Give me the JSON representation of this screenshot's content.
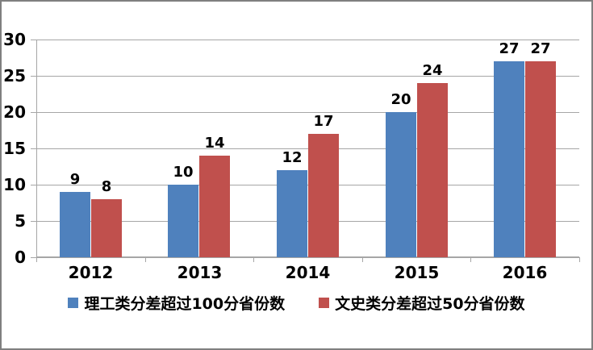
{
  "chart_data": {
    "type": "bar",
    "title": "",
    "xlabel": "",
    "ylabel": "",
    "categories": [
      "2012",
      "2013",
      "2014",
      "2015",
      "2016"
    ],
    "series": [
      {
        "name": "理工类分差超过100分省份数",
        "color": "#4F81BD",
        "values": [
          9,
          10,
          12,
          20,
          27
        ]
      },
      {
        "name": "文史类分差超过50分省份数",
        "color": "#C0504D",
        "values": [
          8,
          14,
          17,
          24,
          27
        ]
      }
    ],
    "ylim": [
      0,
      30
    ],
    "yticks": [
      0,
      5,
      10,
      15,
      20,
      25,
      30
    ],
    "grid": true,
    "data_labels": true,
    "legend_position": "bottom"
  },
  "colors": {
    "series_blue": "#4F81BD",
    "series_red": "#C0504D",
    "gridline": "#A6A6A6",
    "axis": "#A6A6A6",
    "text": "#000000",
    "background": "#FFFFFF",
    "canvas_border": "#7F7F7F"
  }
}
